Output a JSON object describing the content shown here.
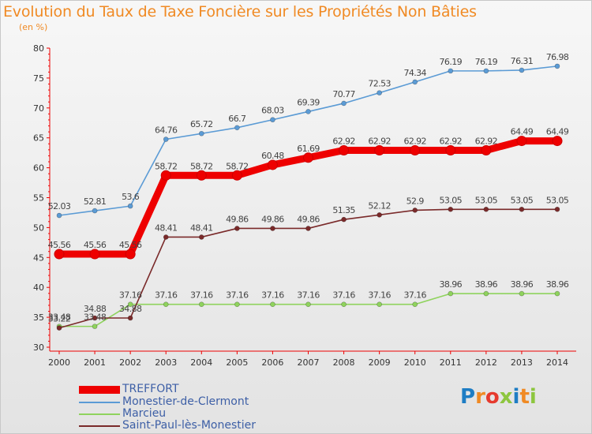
{
  "title": "Evolution du Taux de Taxe Foncière sur les Propriétés Non Bâties",
  "unit_label": "(en %)",
  "logo_text": "Proxiti",
  "logo_colors": [
    "#1e7dc4",
    "#f08a24",
    "#e63a2e",
    "#8dc63f",
    "#1e7dc4",
    "#f08a24",
    "#8dc63f"
  ],
  "chart_data": {
    "type": "line",
    "x": [
      2000,
      2001,
      2002,
      2003,
      2004,
      2005,
      2006,
      2007,
      2008,
      2009,
      2010,
      2011,
      2012,
      2013,
      2014
    ],
    "ylim": [
      30,
      80
    ],
    "yticks": [
      30,
      35,
      40,
      45,
      50,
      55,
      60,
      65,
      70,
      75,
      80
    ],
    "grid": false,
    "series": [
      {
        "name": "TREFFORT",
        "color": "#ee0000",
        "values": [
          45.56,
          45.56,
          45.56,
          58.72,
          58.72,
          58.72,
          60.48,
          61.69,
          62.92,
          62.92,
          62.92,
          62.92,
          62.92,
          64.49,
          64.49
        ],
        "labels": [
          "45.56",
          "45.56",
          "45.56",
          "58.72",
          "58.72",
          "58.72",
          "60.48",
          "61.69",
          "62.92",
          "62.92",
          "62.92",
          "62.92",
          "62.92",
          "64.49",
          "64.49"
        ]
      },
      {
        "name": "Monestier-de-Clermont",
        "color": "#5b9bd5",
        "values": [
          52.03,
          52.81,
          53.6,
          64.76,
          65.72,
          66.7,
          68.03,
          69.39,
          70.77,
          72.53,
          74.34,
          76.19,
          76.19,
          76.31,
          76.98
        ],
        "labels": [
          "52.03",
          "52.81",
          "53.6",
          "64.76",
          "65.72",
          "66.7",
          "68.03",
          "69.39",
          "70.77",
          "72.53",
          "74.34",
          "76.19",
          "76.19",
          "76.31",
          "76.98"
        ]
      },
      {
        "name": "Marcieu",
        "color": "#8fd35d",
        "values": [
          33.48,
          33.48,
          37.16,
          37.16,
          37.16,
          37.16,
          37.16,
          37.16,
          37.16,
          37.16,
          37.16,
          38.96,
          38.96,
          38.96,
          38.96
        ],
        "labels": [
          "33.48",
          "33.48",
          "37.16",
          "37.16",
          "37.16",
          "37.16",
          "37.16",
          "37.16",
          "37.16",
          "37.16",
          "37.16",
          "38.96",
          "38.96",
          "38.96",
          "38.96"
        ]
      },
      {
        "name": "Saint-Paul-lès-Monestier",
        "color": "#7a2a2a",
        "values": [
          33.22,
          34.88,
          34.88,
          48.41,
          48.41,
          49.86,
          49.86,
          49.86,
          51.35,
          52.12,
          52.9,
          53.05,
          53.05,
          53.05,
          53.05
        ],
        "labels": [
          "33.22",
          "34.88",
          "34.88",
          "48.41",
          "48.41",
          "49.86",
          "49.86",
          "49.86",
          "51.35",
          "52.12",
          "52.9",
          "53.05",
          "53.05",
          "53.05",
          "53.05"
        ]
      }
    ]
  }
}
